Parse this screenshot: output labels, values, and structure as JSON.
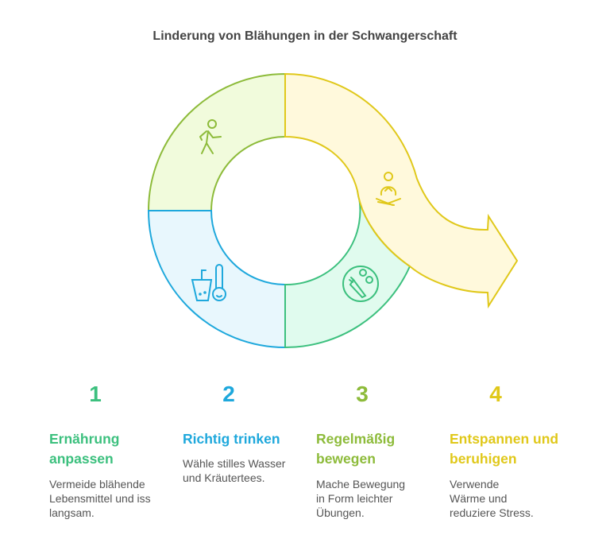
{
  "title": "Linderung von Blähungen in der Schwangerschaft",
  "colors": {
    "green": "#3cc07e",
    "blue": "#1ea8dc",
    "lime": "#8dbb3a",
    "yellow": "#e0c81a"
  },
  "icons": {
    "segment_1": "vegetables-icon",
    "segment_2": "drink-thermometer-icon",
    "segment_3": "walking-person-icon",
    "segment_4": "meditation-icon"
  },
  "steps": [
    {
      "number": "1",
      "title": "Ernährung anpassen",
      "text": "Vermeide blähende Lebensmittel und iss langsam."
    },
    {
      "number": "2",
      "title": "Richtig trinken",
      "text": "Wähle stilles Wasser und Kräutertees."
    },
    {
      "number": "3",
      "title": "Regelmäßig bewegen",
      "text": "Mache Bewegung in Form leichter Übungen."
    },
    {
      "number": "4",
      "title": "Entspannen und beruhigen",
      "text": "Verwende Wärme und reduziere Stress."
    }
  ]
}
